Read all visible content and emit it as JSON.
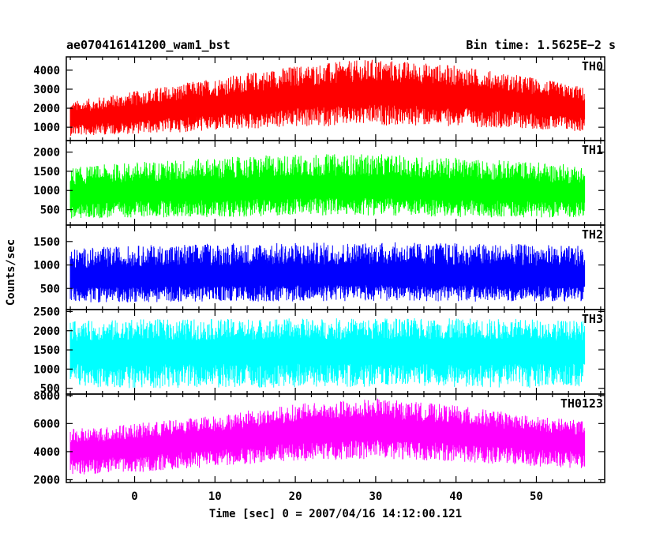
{
  "chart_data": {
    "type": "line",
    "title": "ae070416141200_wam1_bst",
    "bin_time_label": "Bin time: 1.5625E−2 s",
    "xlabel": "Time [sec] 0 = 2007/04/16 14:12:00.121",
    "ylabel": "Counts/sec",
    "xlim": [
      -8.5,
      58.5
    ],
    "x_data_range": [
      -8,
      56
    ],
    "x_ticks": [
      0,
      10,
      20,
      30,
      40,
      50
    ],
    "x_tick_labels": [
      "0",
      "10",
      "20",
      "30",
      "40",
      "50"
    ],
    "grid": false,
    "legend": "none",
    "panels": [
      {
        "name": "TH0",
        "color": "#ff0000",
        "ylim": [
          300,
          4700
        ],
        "yticks": [
          1000,
          2000,
          3000,
          4000
        ],
        "ytick_labels": [
          "1000",
          "2000",
          "3000",
          "4000"
        ],
        "trend_x": [
          -8,
          0,
          10,
          20,
          30,
          40,
          50,
          56
        ],
        "trend_y": [
          1400,
          1700,
          2100,
          2550,
          2800,
          2600,
          2200,
          1900
        ],
        "spread_low": [
          850,
          1050,
          1300,
          1550,
          1700,
          1550,
          1300,
          1150
        ],
        "spread_high": [
          950,
          1200,
          1500,
          1700,
          1800,
          1650,
          1400,
          1200
        ]
      },
      {
        "name": "TH1",
        "color": "#00ff00",
        "ylim": [
          100,
          2300
        ],
        "yticks": [
          500,
          1000,
          1500,
          2000
        ],
        "ytick_labels": [
          "500",
          "1000",
          "1500",
          "2000"
        ],
        "trend_x": [
          -8,
          0,
          10,
          20,
          30,
          40,
          50,
          56
        ],
        "trend_y": [
          850,
          950,
          1000,
          1050,
          1050,
          1000,
          950,
          900
        ],
        "spread_low": [
          600,
          650,
          700,
          700,
          700,
          700,
          650,
          600
        ],
        "spread_high": [
          750,
          800,
          850,
          900,
          900,
          850,
          800,
          750
        ]
      },
      {
        "name": "TH2",
        "color": "#0000ff",
        "ylim": [
          50,
          1850
        ],
        "yticks": [
          500,
          1000,
          1500
        ],
        "ytick_labels": [
          "500",
          "1000",
          "1500"
        ],
        "trend_x": [
          -8,
          0,
          10,
          20,
          30,
          40,
          50,
          56
        ],
        "trend_y": [
          700,
          720,
          740,
          750,
          760,
          750,
          740,
          720
        ],
        "spread_low": [
          500,
          520,
          520,
          530,
          530,
          530,
          520,
          500
        ],
        "spread_high": [
          650,
          700,
          720,
          730,
          730,
          720,
          700,
          680
        ]
      },
      {
        "name": "TH3",
        "color": "#00ffff",
        "ylim": [
          350,
          2550
        ],
        "yticks": [
          500,
          1000,
          1500,
          2000,
          2500
        ],
        "ytick_labels": [
          "500",
          "1000",
          "1500",
          "2000",
          "2500"
        ],
        "trend_x": [
          -8,
          0,
          10,
          20,
          30,
          40,
          50,
          56
        ],
        "trend_y": [
          1450,
          1450,
          1460,
          1470,
          1480,
          1470,
          1460,
          1450
        ],
        "spread_low": [
          900,
          950,
          950,
          950,
          950,
          950,
          950,
          900
        ],
        "spread_high": [
          800,
          850,
          850,
          850,
          850,
          850,
          850,
          800
        ]
      },
      {
        "name": "TH0123",
        "color": "#ff00ff",
        "ylim": [
          1800,
          8100
        ],
        "yticks": [
          2000,
          4000,
          6000,
          8000
        ],
        "ytick_labels": [
          "2000",
          "4000",
          "6000",
          "8000"
        ],
        "trend_x": [
          -8,
          0,
          10,
          20,
          30,
          40,
          50,
          56
        ],
        "trend_y": [
          4000,
          4300,
          4800,
          5300,
          5600,
          5300,
          4800,
          4600
        ],
        "spread_low": [
          1700,
          1800,
          1900,
          2000,
          2100,
          2000,
          1900,
          1800
        ],
        "spread_high": [
          1600,
          1700,
          1800,
          2100,
          2200,
          2000,
          1700,
          1600
        ]
      }
    ]
  }
}
